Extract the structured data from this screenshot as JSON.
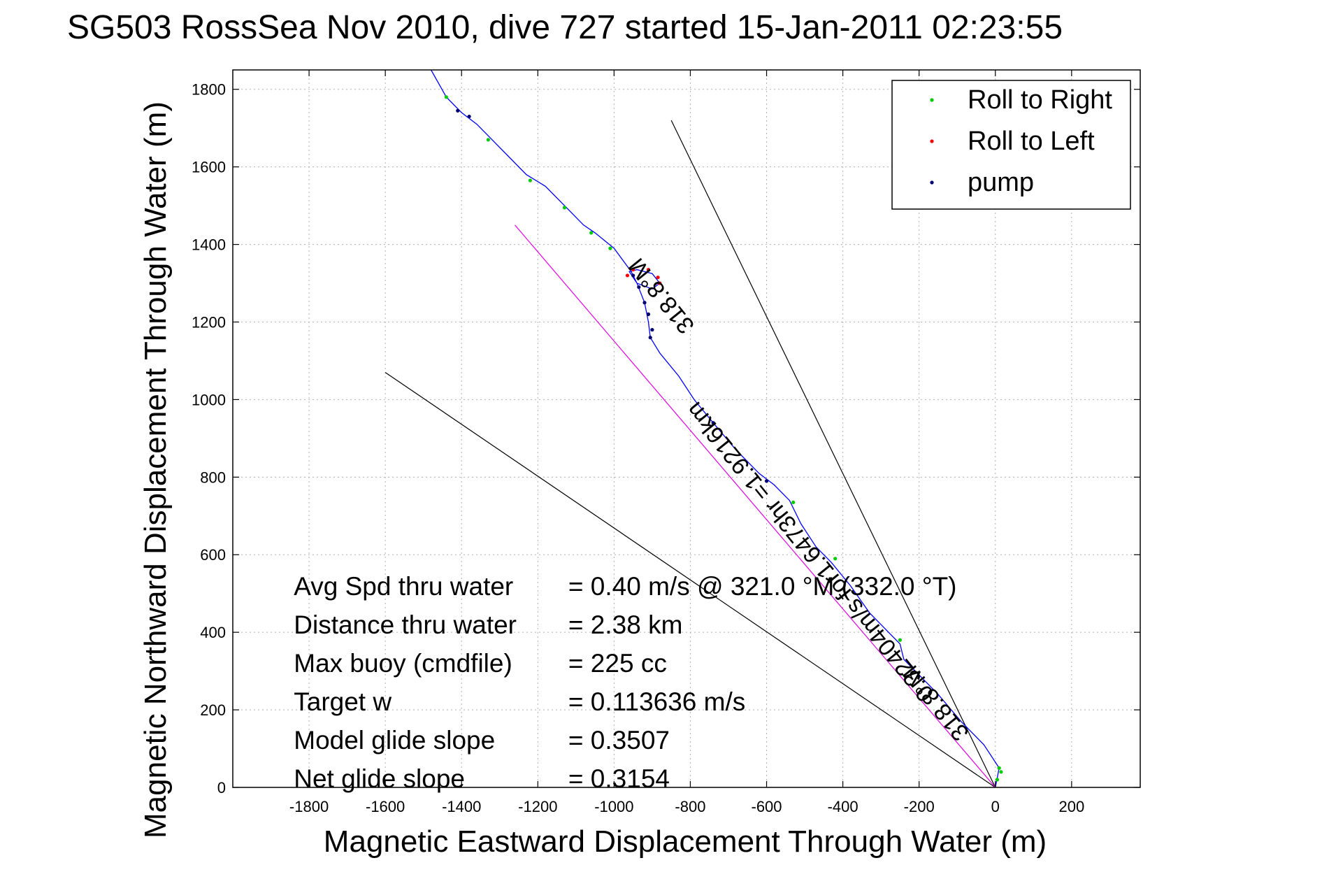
{
  "chart_data": {
    "type": "line",
    "title": "SG503 RossSea Nov 2010, dive 727 started 15-Jan-2011 02:23:55",
    "xlabel": "Magnetic Eastward Displacement Through Water (m)",
    "ylabel": "Magnetic Northward Displacement Through Water (m)",
    "xlim": [
      -2000,
      380
    ],
    "ylim": [
      0,
      1850
    ],
    "xticks": [
      -1800,
      -1600,
      -1400,
      -1200,
      -1000,
      -800,
      -600,
      -400,
      -200,
      0,
      200
    ],
    "yticks": [
      0,
      200,
      400,
      600,
      800,
      1000,
      1200,
      1400,
      1600,
      1800
    ],
    "grid": true,
    "legend_position": "top-right",
    "legend": [
      {
        "label": "Roll to Right",
        "color": "#00cc00"
      },
      {
        "label": "Roll to Left",
        "color": "#ff0000"
      },
      {
        "label": "pump",
        "color": "#00006e"
      }
    ],
    "series": [
      {
        "name": "track",
        "color": "#0000ff",
        "points": [
          [
            0,
            0
          ],
          [
            5,
            25
          ],
          [
            10,
            50
          ],
          [
            -30,
            110
          ],
          [
            -90,
            170
          ],
          [
            -150,
            240
          ],
          [
            -200,
            290
          ],
          [
            -240,
            330
          ],
          [
            -250,
            370
          ],
          [
            -300,
            420
          ],
          [
            -330,
            450
          ],
          [
            -380,
            520
          ],
          [
            -430,
            580
          ],
          [
            -470,
            620
          ],
          [
            -510,
            680
          ],
          [
            -540,
            740
          ],
          [
            -580,
            780
          ],
          [
            -620,
            810
          ],
          [
            -680,
            870
          ],
          [
            -740,
            940
          ],
          [
            -790,
            1000
          ],
          [
            -830,
            1060
          ],
          [
            -880,
            1120
          ],
          [
            -905,
            1160
          ],
          [
            -910,
            1200
          ],
          [
            -920,
            1250
          ],
          [
            -940,
            1300
          ],
          [
            -960,
            1330
          ],
          [
            -940,
            1335
          ],
          [
            -900,
            1325
          ],
          [
            -880,
            1300
          ],
          [
            -900,
            1285
          ],
          [
            -940,
            1300
          ],
          [
            -955,
            1330
          ],
          [
            -1000,
            1390
          ],
          [
            -1050,
            1430
          ],
          [
            -1080,
            1450
          ],
          [
            -1130,
            1500
          ],
          [
            -1180,
            1550
          ],
          [
            -1230,
            1580
          ],
          [
            -1280,
            1630
          ],
          [
            -1320,
            1670
          ],
          [
            -1360,
            1710
          ],
          [
            -1400,
            1740
          ],
          [
            -1440,
            1780
          ],
          [
            -1480,
            1850
          ]
        ]
      },
      {
        "name": "roll-right",
        "color": "#00cc00",
        "points": [
          [
            5,
            20
          ],
          [
            15,
            40
          ],
          [
            10,
            50
          ],
          [
            -250,
            380
          ],
          [
            -420,
            590
          ],
          [
            -530,
            735
          ],
          [
            -1010,
            1390
          ],
          [
            -1060,
            1430
          ],
          [
            -1130,
            1495
          ],
          [
            -1220,
            1565
          ],
          [
            -1330,
            1670
          ],
          [
            -1440,
            1780
          ]
        ]
      },
      {
        "name": "roll-left",
        "color": "#ff0000",
        "points": [
          [
            -965,
            1320
          ],
          [
            -950,
            1335
          ],
          [
            -910,
            1335
          ],
          [
            -885,
            1315
          ],
          [
            -880,
            1300
          ]
        ]
      },
      {
        "name": "pump",
        "color": "#00006e",
        "points": [
          [
            -600,
            790
          ],
          [
            -740,
            940
          ],
          [
            -900,
            1180
          ],
          [
            -905,
            1160
          ],
          [
            -910,
            1220
          ],
          [
            -920,
            1250
          ],
          [
            -935,
            1290
          ],
          [
            -950,
            1320
          ],
          [
            -1380,
            1730
          ],
          [
            -1410,
            1745
          ]
        ]
      }
    ],
    "reference_lines": [
      {
        "color": "#000000",
        "from": [
          0,
          0
        ],
        "to": [
          -1600,
          1070
        ]
      },
      {
        "color": "#000000",
        "from": [
          0,
          0
        ],
        "to": [
          -850,
          1720
        ]
      },
      {
        "color": "#e000e0",
        "from": [
          0,
          0
        ],
        "to": [
          -1260,
          1450
        ]
      }
    ],
    "line_labels": [
      {
        "text": "318.8°M",
        "x": -860,
        "y": 1280,
        "angle": 51
      },
      {
        "text": "0.32404m/s for1.6473hr =1.9216km",
        "x": -470,
        "y": 620,
        "angle": 51
      },
      {
        "text": "318.8°M",
        "x": -140,
        "y": 230,
        "angle": 51
      }
    ],
    "annotations": [
      {
        "label": "Avg Spd thru water",
        "value": "=  0.40 m/s @ 321.0 °M (332.0 °T)"
      },
      {
        "label": "Distance thru water",
        "value": "=  2.38 km"
      },
      {
        "label": "Max buoy (cmdfile)",
        "value": "= 225 cc"
      },
      {
        "label": "Target w",
        "value": "= 0.113636 m/s"
      },
      {
        "label": "Model glide slope",
        "value": "= 0.3507"
      },
      {
        "label": "Net glide slope",
        "value": "= 0.3154"
      }
    ]
  }
}
